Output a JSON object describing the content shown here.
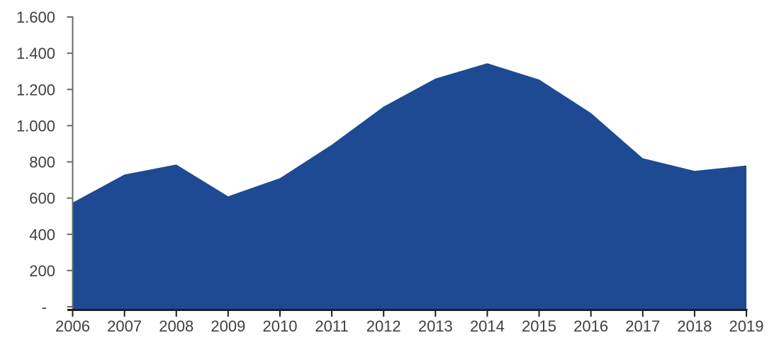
{
  "chart_data": {
    "type": "area",
    "title": "",
    "xlabel": "",
    "ylabel": "",
    "categories": [
      "2006",
      "2007",
      "2008",
      "2009",
      "2010",
      "2011",
      "2012",
      "2013",
      "2014",
      "2015",
      "2016",
      "2017",
      "2018",
      "2019"
    ],
    "values": [
      575,
      730,
      785,
      610,
      710,
      895,
      1105,
      1260,
      1345,
      1255,
      1070,
      820,
      750,
      780
    ],
    "ylim": [
      0,
      1600
    ],
    "ytick_interval": 200,
    "ytick_labels": [
      "-",
      "200",
      "400",
      "600",
      "800",
      "1.000",
      "1.200",
      "1.400",
      "1.600"
    ],
    "grid": false,
    "legend": null,
    "colors": {
      "area_fill": "#1D4A93",
      "y_axis": "#6A6A6A",
      "x_axis": "#1F1F1F",
      "tick_label": "#3F3F3F"
    }
  }
}
